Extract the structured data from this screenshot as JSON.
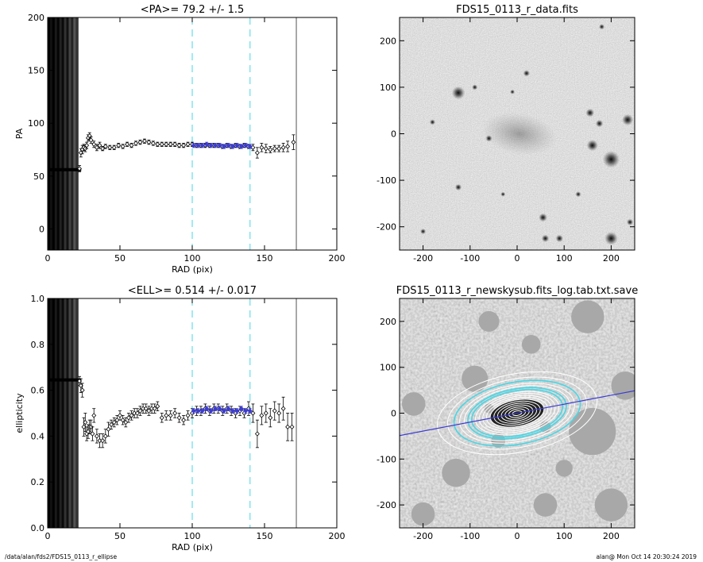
{
  "footer": {
    "left": "/data/alan/fds2/FDS15_0113_r_ellipse",
    "right": "alan@  Mon Oct 14 20:30:24 2019"
  },
  "colors": {
    "axis": "#000000",
    "cyan_marker": "#46d7e6",
    "fit_points": "#3c3cd2",
    "profile_points": "#000000"
  },
  "chart_data": [
    {
      "type": "scatter",
      "title": "<PA>=  79.2 +/-   1.5",
      "xlabel": "RAD (pix)",
      "ylabel": "PA",
      "xlim": [
        0,
        200
      ],
      "ylim": [
        -20,
        200
      ],
      "xticks": [
        0,
        50,
        100,
        150,
        200
      ],
      "yticks": [
        0,
        50,
        100,
        150,
        200
      ],
      "vlines_dashed": [
        100,
        140
      ],
      "vline_solid": 172,
      "inner_band_max_radius": 21,
      "inner_constant_value": 56,
      "series": [
        {
          "style": "open-diamond",
          "x": [
            22,
            23,
            24,
            25,
            26,
            27,
            28,
            29,
            30,
            32,
            34,
            36,
            38,
            40,
            43,
            46,
            49,
            52,
            55,
            58,
            61,
            64,
            67,
            70,
            73,
            76,
            79,
            82,
            85,
            88,
            91,
            94,
            97,
            100,
            103,
            106,
            109,
            112,
            115,
            118,
            121,
            124,
            127,
            130,
            133,
            136,
            139,
            142,
            145,
            148,
            151,
            154,
            157,
            160,
            163,
            166,
            170
          ],
          "y": [
            57,
            72,
            75,
            77,
            76,
            79,
            86,
            88,
            84,
            80,
            77,
            79,
            76,
            78,
            77,
            77,
            79,
            78,
            80,
            79,
            81,
            82,
            83,
            82,
            81,
            80,
            80,
            80,
            80,
            80,
            79,
            79,
            80,
            80,
            79,
            79,
            79,
            79,
            79,
            79,
            78,
            79,
            78,
            79,
            78,
            79,
            78,
            77,
            72,
            77,
            76,
            75,
            76,
            76,
            77,
            78,
            82
          ],
          "yerr": [
            3,
            4,
            4,
            3,
            3,
            3,
            3,
            3,
            3,
            3,
            3,
            3,
            2,
            2,
            2,
            2,
            2,
            2,
            2,
            2,
            2,
            2,
            2,
            2,
            2,
            2,
            2,
            2,
            2,
            2,
            2,
            2,
            2,
            2,
            2,
            2,
            2,
            2,
            2,
            2,
            2,
            2,
            2,
            2,
            2,
            2,
            2,
            3,
            5,
            4,
            4,
            3,
            3,
            3,
            4,
            5,
            7
          ]
        },
        {
          "style": "fit-filled",
          "x": [
            101,
            104,
            107,
            110,
            113,
            116,
            119,
            122,
            125,
            128,
            131,
            134,
            137,
            140
          ],
          "y": [
            79,
            79,
            79,
            80,
            79,
            79,
            79,
            78,
            79,
            78,
            79,
            78,
            79,
            78
          ],
          "yerr": [
            2,
            2,
            2,
            2,
            2,
            2,
            2,
            2,
            2,
            2,
            2,
            2,
            2,
            2
          ]
        }
      ],
      "fit_line": {
        "x": [
          100,
          140
        ],
        "y": 79.2
      }
    },
    {
      "type": "heatmap",
      "title": "FDS15_0113_r_data.fits",
      "xlim": [
        -250,
        250
      ],
      "ylim": [
        -250,
        250
      ],
      "xticks": [
        -200,
        -100,
        0,
        100,
        200
      ],
      "yticks": [
        -200,
        -100,
        0,
        100,
        200
      ],
      "sources": [
        {
          "x": -125,
          "y": 88,
          "r": 14
        },
        {
          "x": 5,
          "y": 0,
          "r": 80
        },
        {
          "x": 155,
          "y": 45,
          "r": 9
        },
        {
          "x": 175,
          "y": 22,
          "r": 8
        },
        {
          "x": 160,
          "y": -25,
          "r": 12
        },
        {
          "x": 200,
          "y": -55,
          "r": 18
        },
        {
          "x": 235,
          "y": 30,
          "r": 12
        },
        {
          "x": -60,
          "y": -10,
          "r": 7
        },
        {
          "x": -180,
          "y": 25,
          "r": 6
        },
        {
          "x": -125,
          "y": -115,
          "r": 7
        },
        {
          "x": 55,
          "y": -180,
          "r": 9
        },
        {
          "x": 90,
          "y": -225,
          "r": 8
        },
        {
          "x": 60,
          "y": -225,
          "r": 8
        },
        {
          "x": 200,
          "y": -225,
          "r": 14
        },
        {
          "x": -90,
          "y": 100,
          "r": 6
        },
        {
          "x": 20,
          "y": 130,
          "r": 7
        },
        {
          "x": -10,
          "y": 90,
          "r": 5
        },
        {
          "x": 130,
          "y": -130,
          "r": 6
        },
        {
          "x": -30,
          "y": -130,
          "r": 5
        },
        {
          "x": -200,
          "y": -210,
          "r": 6
        },
        {
          "x": 240,
          "y": -190,
          "r": 7
        },
        {
          "x": 180,
          "y": 230,
          "r": 6
        }
      ]
    },
    {
      "type": "scatter",
      "title": "<ELL>= 0.514 +/-  0.017",
      "xlabel": "RAD (pix)",
      "ylabel": "ellipticity",
      "xlim": [
        0,
        200
      ],
      "ylim": [
        0,
        1
      ],
      "xticks": [
        0,
        50,
        100,
        150,
        200
      ],
      "yticks": [
        0.0,
        0.2,
        0.4,
        0.6,
        0.8,
        1.0
      ],
      "vlines_dashed": [
        100,
        140
      ],
      "vline_solid": 172,
      "inner_band_max_radius": 21,
      "inner_constant_value": 0.645,
      "series": [
        {
          "style": "open-diamond",
          "x": [
            22,
            23,
            24,
            25,
            26,
            27,
            28,
            29,
            30,
            31,
            32,
            34,
            36,
            38,
            40,
            42,
            44,
            46,
            48,
            50,
            52,
            54,
            56,
            58,
            60,
            62,
            64,
            66,
            68,
            70,
            72,
            74,
            76,
            79,
            82,
            85,
            88,
            91,
            94,
            97,
            100,
            103,
            106,
            109,
            112,
            115,
            118,
            121,
            124,
            127,
            130,
            133,
            136,
            139,
            142,
            145,
            148,
            151,
            154,
            157,
            160,
            163,
            166,
            169
          ],
          "y": [
            0.64,
            0.62,
            0.6,
            0.44,
            0.46,
            0.41,
            0.42,
            0.44,
            0.44,
            0.41,
            0.49,
            0.4,
            0.38,
            0.38,
            0.4,
            0.43,
            0.45,
            0.46,
            0.47,
            0.49,
            0.47,
            0.46,
            0.48,
            0.49,
            0.5,
            0.5,
            0.51,
            0.52,
            0.52,
            0.51,
            0.52,
            0.52,
            0.53,
            0.48,
            0.49,
            0.49,
            0.5,
            0.48,
            0.47,
            0.49,
            0.5,
            0.51,
            0.51,
            0.52,
            0.51,
            0.52,
            0.52,
            0.51,
            0.52,
            0.51,
            0.5,
            0.51,
            0.5,
            0.52,
            0.5,
            0.41,
            0.49,
            0.5,
            0.48,
            0.51,
            0.5,
            0.52,
            0.44,
            0.44
          ],
          "yerr": [
            0.02,
            0.03,
            0.03,
            0.04,
            0.04,
            0.03,
            0.03,
            0.03,
            0.03,
            0.03,
            0.03,
            0.03,
            0.03,
            0.03,
            0.03,
            0.03,
            0.02,
            0.02,
            0.02,
            0.02,
            0.02,
            0.02,
            0.02,
            0.02,
            0.02,
            0.02,
            0.02,
            0.02,
            0.02,
            0.02,
            0.02,
            0.02,
            0.02,
            0.02,
            0.02,
            0.02,
            0.02,
            0.02,
            0.02,
            0.02,
            0.02,
            0.02,
            0.02,
            0.02,
            0.02,
            0.02,
            0.02,
            0.02,
            0.02,
            0.02,
            0.02,
            0.02,
            0.02,
            0.03,
            0.04,
            0.06,
            0.04,
            0.04,
            0.04,
            0.04,
            0.04,
            0.05,
            0.06,
            0.06
          ]
        },
        {
          "style": "fit-filled",
          "x": [
            101,
            104,
            107,
            110,
            113,
            116,
            119,
            122,
            125,
            128,
            131,
            134,
            137,
            140
          ],
          "y": [
            0.51,
            0.51,
            0.51,
            0.52,
            0.51,
            0.52,
            0.52,
            0.51,
            0.52,
            0.51,
            0.51,
            0.52,
            0.51,
            0.51
          ],
          "yerr": [
            0.01,
            0.01,
            0.01,
            0.01,
            0.01,
            0.01,
            0.01,
            0.01,
            0.01,
            0.01,
            0.01,
            0.01,
            0.01,
            0.01
          ]
        }
      ],
      "fit_line": {
        "x": [
          100,
          140
        ],
        "y": 0.514
      }
    },
    {
      "type": "heatmap",
      "title": "FDS15_0113_r_newskysub.fits_log.tab.txt.save",
      "xlim": [
        -250,
        250
      ],
      "ylim": [
        -250,
        250
      ],
      "xticks": [
        -200,
        -100,
        0,
        100,
        200
      ],
      "yticks": [
        -200,
        -100,
        0,
        100,
        200
      ],
      "masks": [
        {
          "x": 160,
          "y": -40,
          "r": 50
        },
        {
          "x": -90,
          "y": 75,
          "r": 28
        },
        {
          "x": 150,
          "y": 210,
          "r": 35
        },
        {
          "x": -130,
          "y": -130,
          "r": 30
        },
        {
          "x": -220,
          "y": 20,
          "r": 25
        },
        {
          "x": 60,
          "y": -200,
          "r": 25
        },
        {
          "x": 200,
          "y": -200,
          "r": 35
        },
        {
          "x": 230,
          "y": 60,
          "r": 30
        },
        {
          "x": -60,
          "y": 200,
          "r": 22
        },
        {
          "x": 30,
          "y": 150,
          "r": 20
        },
        {
          "x": -200,
          "y": -220,
          "r": 25
        },
        {
          "x": 100,
          "y": -120,
          "r": 18
        },
        {
          "x": -40,
          "y": -60,
          "r": 15
        },
        {
          "x": 60,
          "y": -30,
          "r": 12
        },
        {
          "x": -60,
          "y": 10,
          "r": 10
        }
      ],
      "isophotes": {
        "center": [
          0,
          0
        ],
        "pa_deg": 79.2,
        "ellipticity": 0.514,
        "radii": [
          10,
          18,
          26,
          34,
          42,
          50,
          58,
          66,
          74,
          82,
          90,
          98,
          106,
          114,
          124,
          136,
          150,
          172
        ],
        "cyan_radii": [
          100,
          140
        ]
      },
      "major_axis_line": {
        "pa_deg": 79.2,
        "extent": 260
      }
    }
  ]
}
